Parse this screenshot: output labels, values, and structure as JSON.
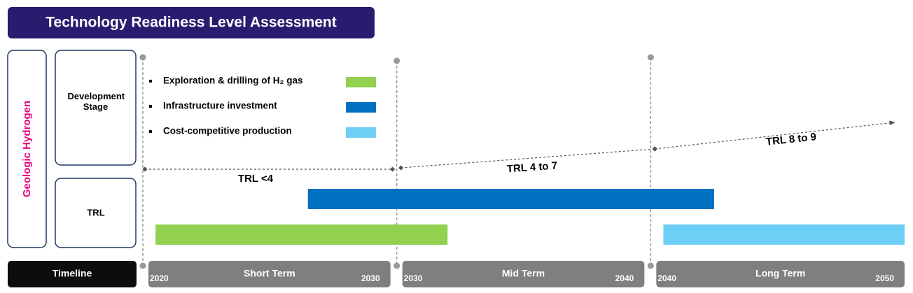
{
  "title": "Technology Readiness Level Assessment",
  "side_label": "Geologic Hydrogen",
  "row_labels": [
    "Development Stage",
    "TRL"
  ],
  "timeline": {
    "label": "Timeline",
    "periods": [
      {
        "name": "Short Term",
        "start": 2020,
        "end": 2030
      },
      {
        "name": "Mid Term",
        "start": 2030,
        "end": 2040
      },
      {
        "name": "Long Term",
        "start": 2040,
        "end": 2050
      }
    ]
  },
  "trl_labels": [
    "TRL <4",
    "TRL 4 to 7",
    "TRL 8 to 9"
  ],
  "series": [
    {
      "name": "Exploration & drilling of H₂ gas",
      "color": "#92d050",
      "start": 2020.5,
      "end": 2032
    },
    {
      "name": "Infrastructure investment",
      "color": "#0070c0",
      "start": 2026.5,
      "end": 2042.5
    },
    {
      "name": "Cost-competitive production",
      "color": "#6dcff6",
      "start": 2040.5,
      "end": 2050
    }
  ]
}
